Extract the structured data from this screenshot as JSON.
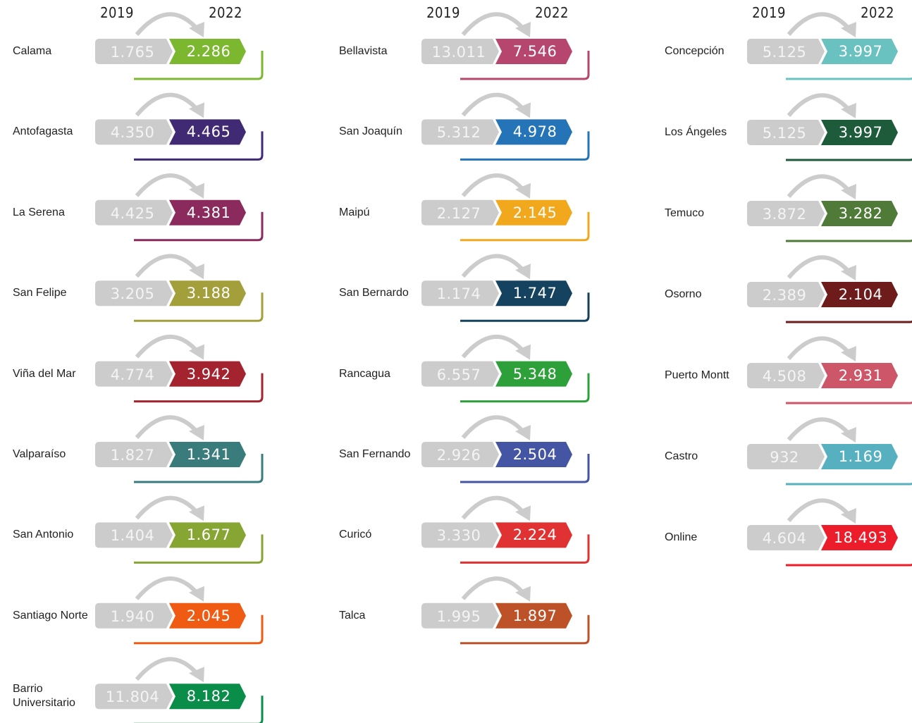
{
  "columns": [
    {
      "year_from": "2019",
      "year_to": "2022",
      "rows": [
        {
          "name": "Calama",
          "from": "1.765",
          "to": "2.286",
          "color": "#7cb82f"
        },
        {
          "name": "Antofagasta",
          "from": "4.350",
          "to": "4.465",
          "color": "#3f2a73"
        },
        {
          "name": "La Serena",
          "from": "4.425",
          "to": "4.381",
          "color": "#8b2a5c"
        },
        {
          "name": "San Felipe",
          "from": "3.205",
          "to": "3.188",
          "color": "#a39f3a"
        },
        {
          "name": "Viña del Mar",
          "from": "4.774",
          "to": "3.942",
          "color": "#a3242f"
        },
        {
          "name": "Valparaíso",
          "from": "1.827",
          "to": "1.341",
          "color": "#3a7c7c"
        },
        {
          "name": "San Antonio",
          "from": "1.404",
          "to": "1.677",
          "color": "#86a533"
        },
        {
          "name": "Santiago Norte",
          "from": "1.940",
          "to": "2.045",
          "color": "#ef5b13"
        },
        {
          "name": "Barrio Universitario",
          "from": "11.804",
          "to": "8.182",
          "color": "#0b8d4a"
        }
      ]
    },
    {
      "year_from": "2019",
      "year_to": "2022",
      "rows": [
        {
          "name": "Bellavista",
          "from": "13.011",
          "to": "7.546",
          "color": "#b7466e"
        },
        {
          "name": "San Joaquín",
          "from": "5.312",
          "to": "4.978",
          "color": "#2574b8"
        },
        {
          "name": "Maipú",
          "from": "2.127",
          "to": "2.145",
          "color": "#f2a81d"
        },
        {
          "name": "San Bernardo",
          "from": "1.174",
          "to": "1.747",
          "color": "#15425f"
        },
        {
          "name": "Rancagua",
          "from": "6.557",
          "to": "5.348",
          "color": "#2ea03a"
        },
        {
          "name": "San Fernando",
          "from": "2.926",
          "to": "2.504",
          "color": "#4455a3"
        },
        {
          "name": "Curicó",
          "from": "3.330",
          "to": "2.224",
          "color": "#e03232"
        },
        {
          "name": "Talca",
          "from": "1.995",
          "to": "1.897",
          "color": "#bd5229"
        }
      ]
    },
    {
      "year_from": "2019",
      "year_to": "2022",
      "rows": [
        {
          "name": "Concepción",
          "from": "5.125",
          "to": "3.997",
          "color": "#6ac2c0"
        },
        {
          "name": "Los Ángeles",
          "from": "5.125",
          "to": "3.997",
          "color": "#1d5b3b"
        },
        {
          "name": "Temuco",
          "from": "3.872",
          "to": "3.282",
          "color": "#4f7a37"
        },
        {
          "name": "Osorno",
          "from": "2.389",
          "to": "2.104",
          "color": "#6e1b1b"
        },
        {
          "name": "Puerto Montt",
          "from": "4.508",
          "to": "2.931",
          "color": "#cd5668"
        },
        {
          "name": "Castro",
          "from": "932",
          "to": "1.169",
          "color": "#56b0c0"
        },
        {
          "name": "Online",
          "from": "4.604",
          "to": "18.493",
          "color": "#ec1c2a"
        }
      ]
    }
  ]
}
